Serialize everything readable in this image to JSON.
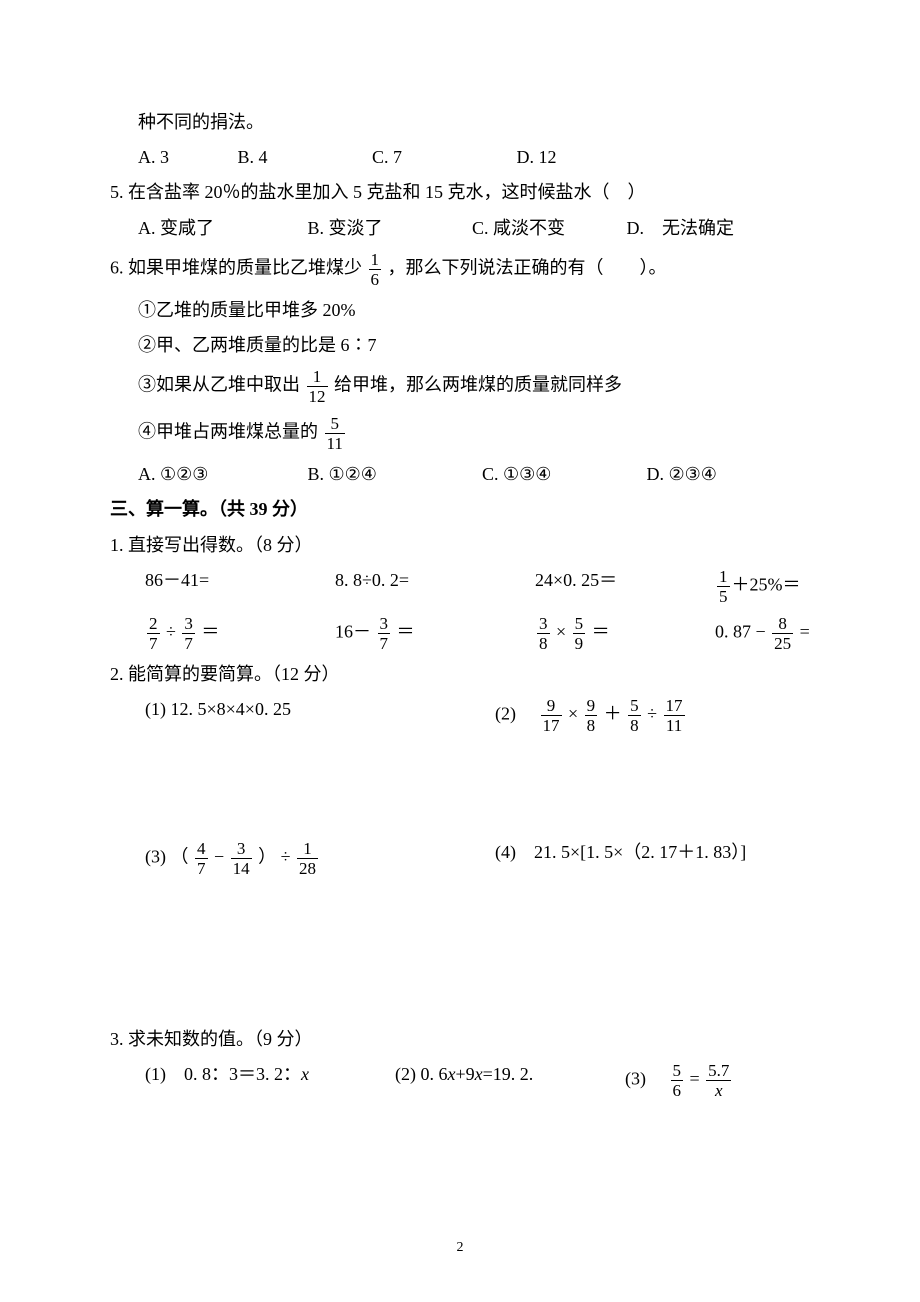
{
  "q4_tail": "种不同的捐法。",
  "q4_opts": {
    "a": "A. 3",
    "b": "B. 4",
    "c": "C. 7",
    "d": "D. 12"
  },
  "q5_text": "5. 在含盐率 20％的盐水里加入 5 克盐和 15 克水，这时候盐水（　）",
  "q5_opts": {
    "a": "A. 变咸了",
    "b": "B. 变淡了",
    "c": "C. 咸淡不变",
    "d": "D.　无法确定"
  },
  "q6_text_a": "6. 如果甲堆煤的质量比乙堆煤少 ",
  "q6_text_b": "，那么下列说法正确的有（　　）。",
  "q6_frac1": {
    "num": "1",
    "den": "6"
  },
  "q6_s1": "①乙堆的质量比甲堆多 20%",
  "q6_s2": "②甲、乙两堆质量的比是 6∶7",
  "q6_s3a": "③如果从乙堆中取出 ",
  "q6_s3b": "给甲堆，那么两堆煤的质量就同样多",
  "q6_frac2": {
    "num": "1",
    "den": "12"
  },
  "q6_s4a": "④甲堆占两堆煤总量的 ",
  "q6_frac3": {
    "num": "5",
    "den": "11"
  },
  "q6_opts": {
    "a": "A. ①②③",
    "b": "B. ①②④",
    "c": "C. ①③④",
    "d": "D. ②③④"
  },
  "sec3_title": "三、算一算。（共 39 分）",
  "p1_title": "1. 直接写出得数。（8 分）",
  "p1_r1_c1": "86－41=",
  "p1_r1_c2": "8. 8÷0. 2=",
  "p1_r1_c3": "24×0. 25＝",
  "p1_r1_c4_fr": {
    "num": "1",
    "den": "5"
  },
  "p1_r1_c4_tail": "＋25%＝",
  "p1_r2_c1_f1": {
    "num": "2",
    "den": "7"
  },
  "p1_r2_c1_f2": {
    "num": "3",
    "den": "7"
  },
  "p1_r2_c2_pre": "16－",
  "p1_r2_c2_fr": {
    "num": "3",
    "den": "7"
  },
  "p1_r2_c3_f1": {
    "num": "3",
    "den": "8"
  },
  "p1_r2_c3_f2": {
    "num": "5",
    "den": "9"
  },
  "p1_r2_c4_pre": "0. 87 − ",
  "p1_r2_c4_fr": {
    "num": "8",
    "den": "25"
  },
  "p2_title": "2. 能简算的要简算。（12 分）",
  "p2_1_label": "(1)  12. 5×8×4×0. 25",
  "p2_2_label": "(2)　",
  "p2_2_f1": {
    "num": "9",
    "den": "17"
  },
  "p2_2_f2": {
    "num": "9",
    "den": "8"
  },
  "p2_2_f3": {
    "num": "5",
    "den": "8"
  },
  "p2_2_f4": {
    "num": "17",
    "den": "11"
  },
  "p2_3_label": "(3) （",
  "p2_3_f1": {
    "num": "4",
    "den": "7"
  },
  "p2_3_f2": {
    "num": "3",
    "den": "14"
  },
  "p2_3_mid": "） ÷",
  "p2_3_f3": {
    "num": "1",
    "den": "28"
  },
  "p2_4_label": "(4)　21. 5×[1. 5×（2. 17＋1. 83）]",
  "p3_title": "3. 求未知数的值。（9 分）",
  "p3_1": "(1)　0. 8：3＝3. 2：",
  "p3_2_a": "(2) 0. 6",
  "p3_2_b": "+9",
  "p3_2_c": "=19. 2.",
  "p3_3_label": "(3)　",
  "p3_3_f1": {
    "num": "5",
    "den": "6"
  },
  "p3_3_eq": " = ",
  "p3_3_f2num": "5.7",
  "page_number": "2"
}
